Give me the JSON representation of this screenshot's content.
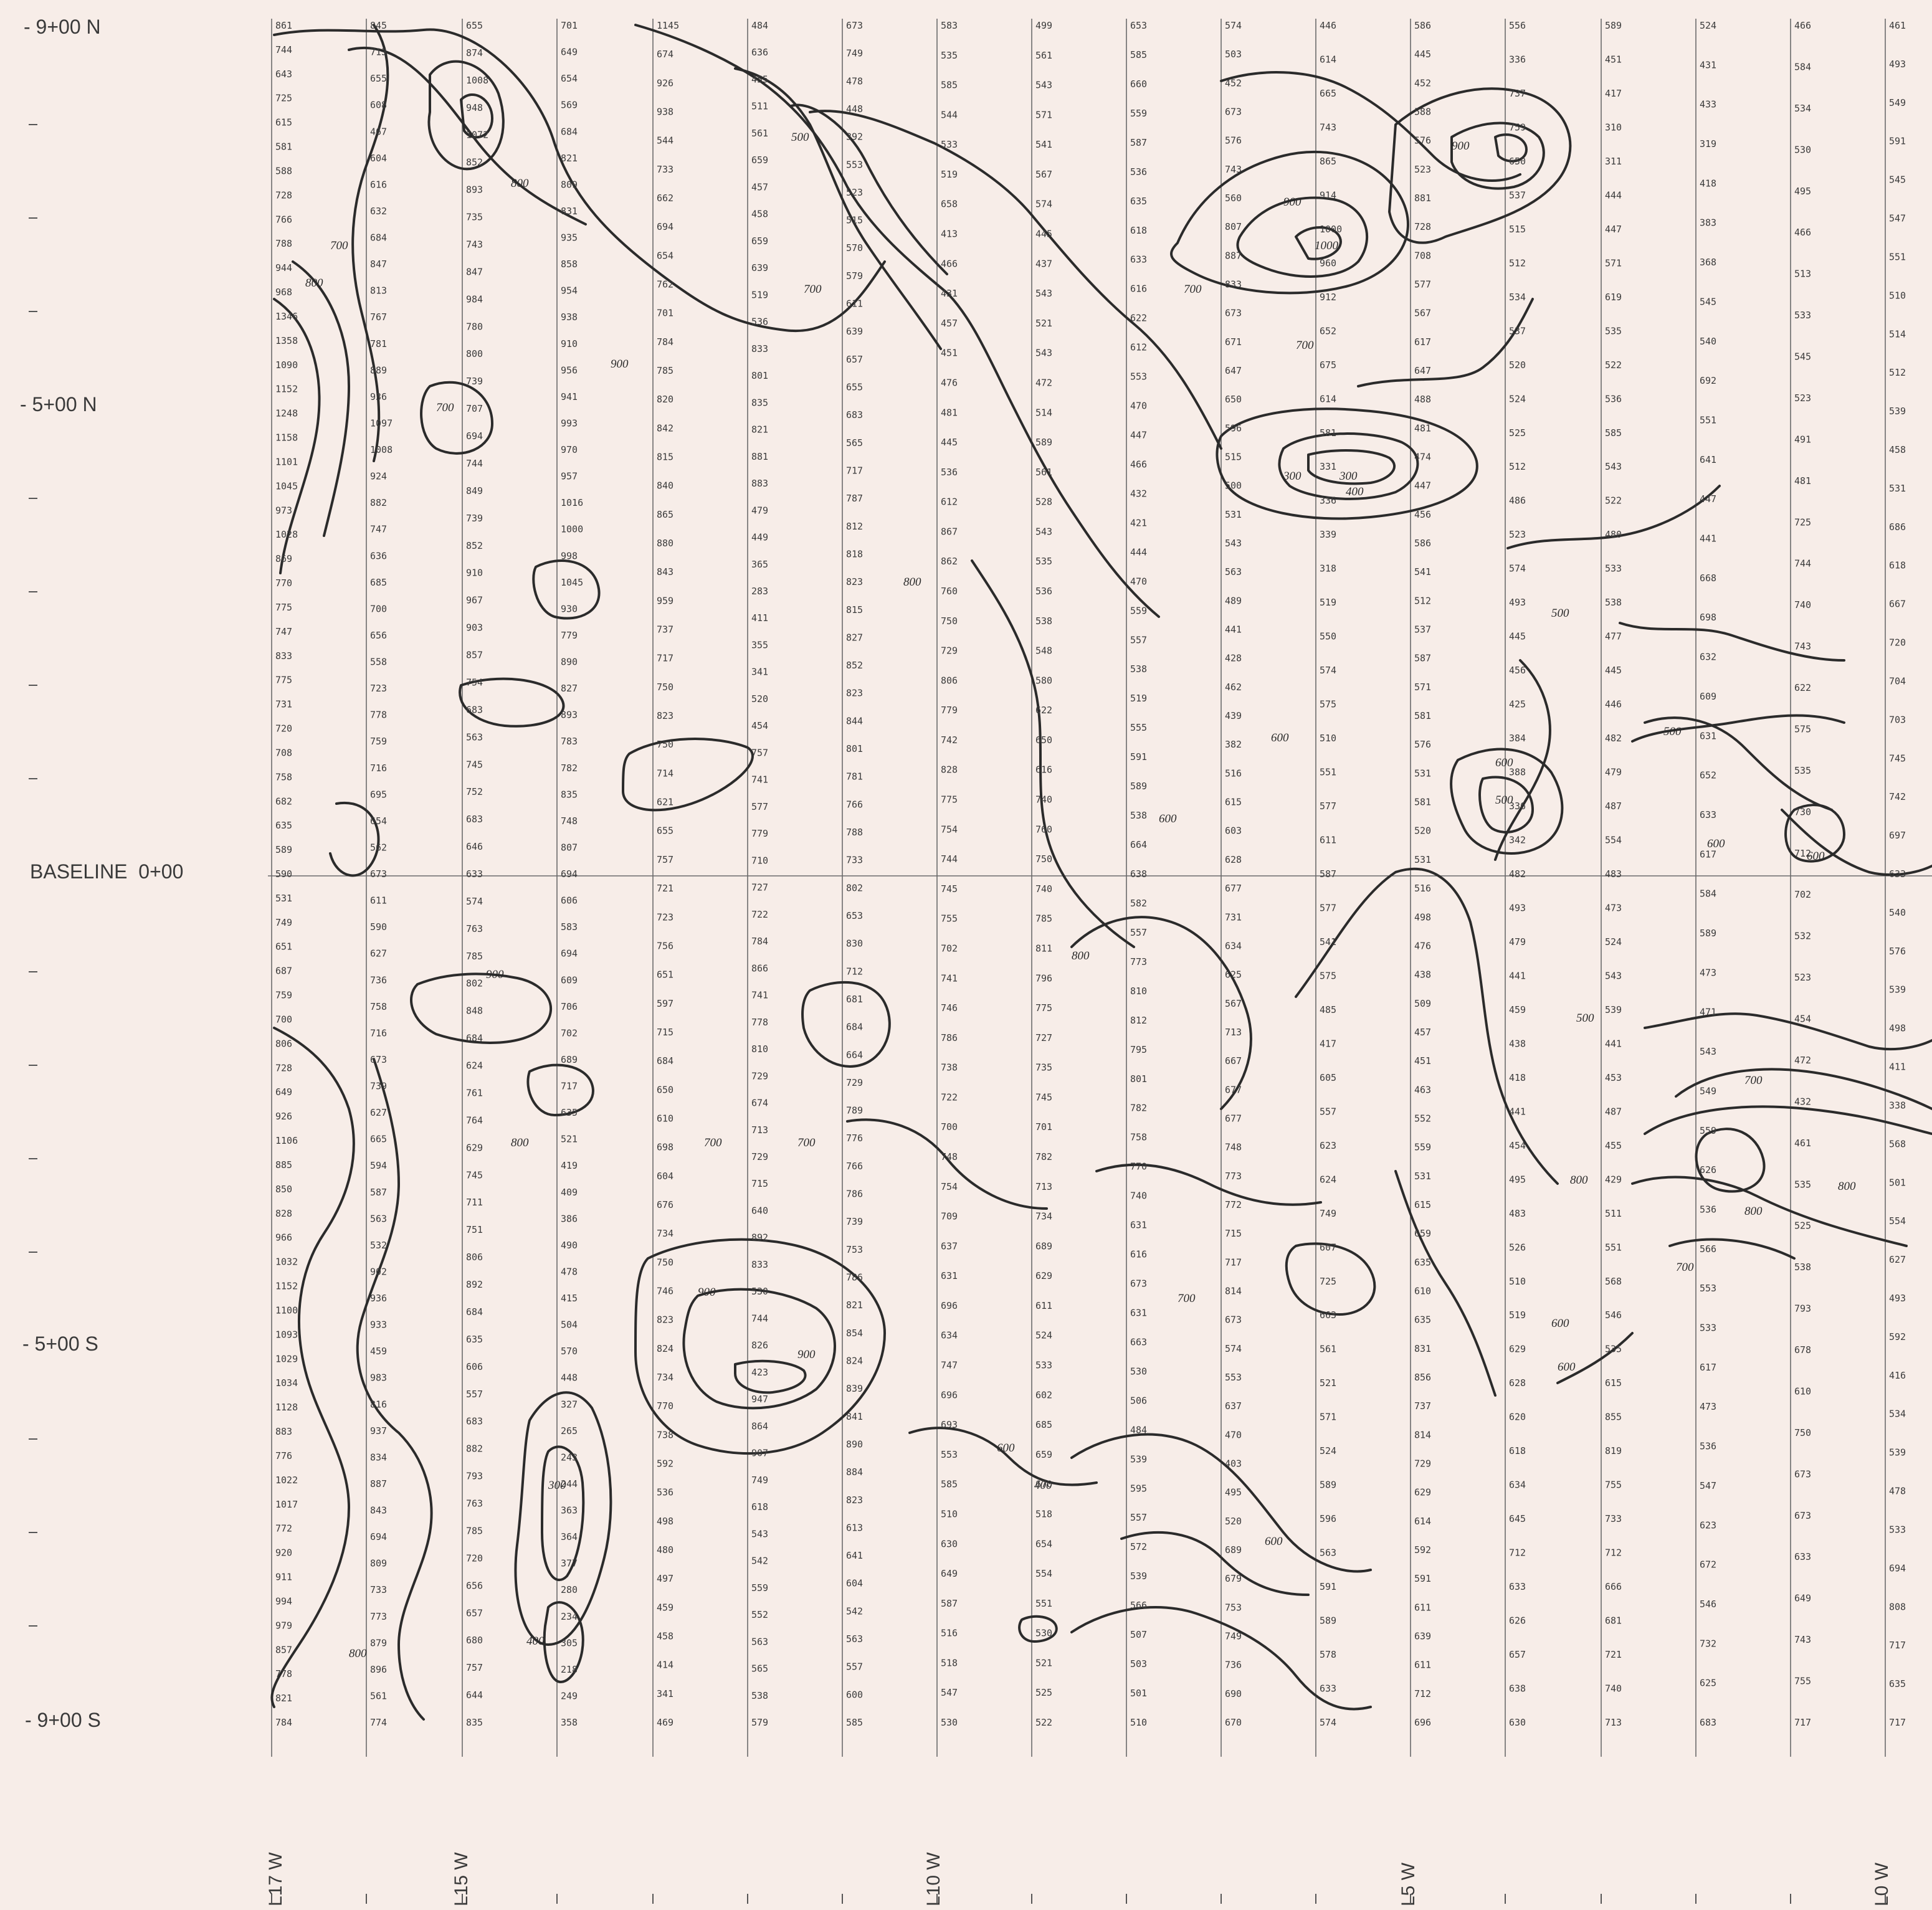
{
  "map": {
    "row_labels": [
      "- 9+00 N",
      "- 5+00 N",
      "BASELINE  0+00",
      "- 5+00 S",
      "- 9+00 S"
    ],
    "line_labels": [
      "L17 W",
      "L15 W",
      "L10 W",
      "L5 W",
      "L0 W"
    ],
    "contour_labels": [
      "300",
      "300",
      "300",
      "400",
      "400",
      "400",
      "500",
      "500",
      "500",
      "500",
      "500",
      "600",
      "600",
      "600",
      "600",
      "600",
      "600",
      "600",
      "600",
      "600",
      "700",
      "700",
      "700",
      "700",
      "700",
      "700",
      "700",
      "700",
      "700",
      "700",
      "800",
      "800",
      "800",
      "800",
      "800",
      "800",
      "800",
      "800",
      "800",
      "900",
      "900",
      "900",
      "900",
      "900",
      "900",
      "1000"
    ],
    "readings": [
      {
        "line": 0,
        "values": [
          "861",
          "744",
          "643",
          "725",
          "615",
          "581",
          "588",
          "728",
          "766",
          "788",
          "944",
          "968",
          "1346",
          "1358",
          "1090",
          "1152",
          "1248",
          "1158",
          "1101",
          "1045",
          "973",
          "1028",
          "869",
          "770",
          "775",
          "747",
          "833",
          "775",
          "731",
          "720",
          "708",
          "758",
          "682",
          "635",
          "589",
          "590",
          "531",
          "749",
          "651",
          "687",
          "759",
          "700",
          "806",
          "728",
          "649",
          "926",
          "1106",
          "885",
          "850",
          "828",
          "966",
          "1032",
          "1152",
          "1100",
          "1093",
          "1029",
          "1034",
          "1128",
          "883",
          "776",
          "1022",
          "1017",
          "772",
          "920",
          "911",
          "994",
          "979",
          "857",
          "778",
          "821",
          "784"
        ]
      },
      {
        "line": 1,
        "values": [
          "845",
          "713",
          "655",
          "608",
          "467",
          "604",
          "616",
          "632",
          "684",
          "847",
          "813",
          "767",
          "781",
          "889",
          "936",
          "1097",
          "1008",
          "924",
          "882",
          "747",
          "636",
          "685",
          "700",
          "656",
          "558",
          "723",
          "778",
          "759",
          "716",
          "695",
          "654",
          "562",
          "673",
          "611",
          "590",
          "627",
          "736",
          "758",
          "716",
          "673",
          "739",
          "627",
          "665",
          "594",
          "587",
          "563",
          "532",
          "902",
          "936",
          "933",
          "459",
          "983",
          "816",
          "937",
          "834",
          "887",
          "843",
          "694",
          "809",
          "733",
          "773",
          "879",
          "896",
          "561",
          "774"
        ]
      },
      {
        "line": 2,
        "values": [
          "655",
          "874",
          "1008",
          "948",
          "1072",
          "852",
          "893",
          "735",
          "743",
          "847",
          "984",
          "780",
          "800",
          "739",
          "707",
          "694",
          "744",
          "849",
          "739",
          "852",
          "910",
          "967",
          "903",
          "857",
          "754",
          "683",
          "563",
          "745",
          "752",
          "683",
          "646",
          "633",
          "574",
          "763",
          "785",
          "802",
          "848",
          "684",
          "624",
          "761",
          "764",
          "629",
          "745",
          "711",
          "751",
          "806",
          "892",
          "684",
          "635",
          "606",
          "557",
          "683",
          "882",
          "793",
          "763",
          "785",
          "720",
          "656",
          "657",
          "680",
          "757",
          "644",
          "835"
        ]
      },
      {
        "line": 3,
        "values": [
          "701",
          "649",
          "654",
          "569",
          "684",
          "821",
          "809",
          "831",
          "935",
          "858",
          "954",
          "938",
          "910",
          "956",
          "941",
          "993",
          "970",
          "957",
          "1016",
          "1000",
          "998",
          "1045",
          "930",
          "779",
          "890",
          "827",
          "893",
          "783",
          "782",
          "835",
          "748",
          "807",
          "694",
          "606",
          "583",
          "694",
          "609",
          "706",
          "702",
          "689",
          "717",
          "635",
          "521",
          "419",
          "409",
          "386",
          "490",
          "478",
          "415",
          "504",
          "570",
          "448",
          "327",
          "265",
          "243",
          "244",
          "363",
          "364",
          "377",
          "280",
          "234",
          "305",
          "218",
          "249",
          "358"
        ]
      },
      {
        "line": 4,
        "values": [
          "1145",
          "674",
          "926",
          "938",
          "544",
          "733",
          "662",
          "694",
          "654",
          "762",
          "701",
          "784",
          "785",
          "820",
          "842",
          "815",
          "840",
          "865",
          "880",
          "843",
          "959",
          "737",
          "717",
          "750",
          "823",
          "750",
          "714",
          "621",
          "655",
          "757",
          "721",
          "723",
          "756",
          "651",
          "597",
          "715",
          "684",
          "650",
          "610",
          "698",
          "604",
          "676",
          "734",
          "750",
          "746",
          "823",
          "824",
          "734",
          "770",
          "738",
          "592",
          "536",
          "498",
          "480",
          "497",
          "459",
          "458",
          "414",
          "341",
          "469"
        ]
      },
      {
        "line": 5,
        "values": [
          "484",
          "636",
          "455",
          "511",
          "561",
          "659",
          "457",
          "458",
          "659",
          "639",
          "519",
          "536",
          "833",
          "801",
          "835",
          "821",
          "881",
          "883",
          "479",
          "449",
          "365",
          "283",
          "411",
          "355",
          "341",
          "520",
          "454",
          "757",
          "741",
          "577",
          "779",
          "710",
          "727",
          "722",
          "784",
          "866",
          "741",
          "778",
          "810",
          "729",
          "674",
          "713",
          "729",
          "715",
          "640",
          "892",
          "833",
          "530",
          "744",
          "826",
          "423",
          "947",
          "864",
          "907",
          "749",
          "618",
          "543",
          "542",
          "559",
          "552",
          "563",
          "565",
          "538",
          "579"
        ]
      },
      {
        "line": 6,
        "values": [
          "673",
          "749",
          "478",
          "448",
          "392",
          "553",
          "523",
          "515",
          "570",
          "579",
          "611",
          "639",
          "657",
          "655",
          "683",
          "565",
          "717",
          "787",
          "812",
          "818",
          "823",
          "815",
          "827",
          "852",
          "823",
          "844",
          "801",
          "781",
          "766",
          "788",
          "733",
          "802",
          "653",
          "830",
          "712",
          "681",
          "684",
          "664",
          "729",
          "789",
          "776",
          "766",
          "786",
          "739",
          "753",
          "786",
          "821",
          "854",
          "824",
          "839",
          "841",
          "890",
          "884",
          "823",
          "613",
          "641",
          "604",
          "542",
          "563",
          "557",
          "600",
          "585"
        ]
      },
      {
        "line": 7,
        "values": [
          "583",
          "535",
          "585",
          "544",
          "533",
          "519",
          "658",
          "413",
          "466",
          "431",
          "457",
          "451",
          "476",
          "481",
          "445",
          "536",
          "612",
          "867",
          "862",
          "760",
          "750",
          "729",
          "806",
          "779",
          "742",
          "828",
          "775",
          "754",
          "744",
          "745",
          "755",
          "702",
          "741",
          "746",
          "786",
          "738",
          "722",
          "700",
          "748",
          "754",
          "709",
          "637",
          "631",
          "696",
          "634",
          "747",
          "696",
          "693",
          "553",
          "585",
          "510",
          "630",
          "649",
          "587",
          "516",
          "518",
          "547",
          "530"
        ]
      },
      {
        "line": 8,
        "values": [
          "499",
          "561",
          "543",
          "571",
          "541",
          "567",
          "574",
          "445",
          "437",
          "543",
          "521",
          "543",
          "472",
          "514",
          "589",
          "561",
          "528",
          "543",
          "535",
          "536",
          "538",
          "548",
          "580",
          "622",
          "650",
          "616",
          "740",
          "760",
          "750",
          "740",
          "785",
          "811",
          "796",
          "775",
          "727",
          "735",
          "745",
          "701",
          "782",
          "713",
          "734",
          "689",
          "629",
          "611",
          "524",
          "533",
          "602",
          "685",
          "659",
          "670",
          "518",
          "654",
          "554",
          "551",
          "530",
          "521",
          "525",
          "522"
        ]
      },
      {
        "line": 9,
        "values": [
          "653",
          "585",
          "660",
          "559",
          "587",
          "536",
          "635",
          "618",
          "633",
          "616",
          "622",
          "612",
          "553",
          "470",
          "447",
          "466",
          "432",
          "421",
          "444",
          "470",
          "559",
          "557",
          "538",
          "519",
          "555",
          "591",
          "589",
          "538",
          "664",
          "638",
          "582",
          "557",
          "773",
          "810",
          "812",
          "795",
          "801",
          "782",
          "758",
          "770",
          "740",
          "631",
          "616",
          "673",
          "631",
          "663",
          "530",
          "506",
          "484",
          "539",
          "595",
          "557",
          "572",
          "539",
          "566",
          "507",
          "503",
          "501",
          "510"
        ]
      },
      {
        "line": 10,
        "values": [
          "574",
          "503",
          "452",
          "673",
          "576",
          "743",
          "560",
          "807",
          "887",
          "833",
          "673",
          "671",
          "647",
          "650",
          "596",
          "515",
          "500",
          "531",
          "543",
          "563",
          "489",
          "441",
          "428",
          "462",
          "439",
          "382",
          "516",
          "615",
          "603",
          "628",
          "677",
          "731",
          "634",
          "625",
          "567",
          "713",
          "667",
          "677",
          "677",
          "748",
          "773",
          "772",
          "715",
          "717",
          "814",
          "673",
          "574",
          "553",
          "637",
          "470",
          "403",
          "495",
          "520",
          "689",
          "679",
          "753",
          "749",
          "736",
          "690",
          "670"
        ]
      },
      {
        "line": 11,
        "values": [
          "446",
          "614",
          "665",
          "743",
          "865",
          "914",
          "1000",
          "960",
          "912",
          "652",
          "675",
          "614",
          "581",
          "331",
          "336",
          "339",
          "318",
          "519",
          "550",
          "574",
          "575",
          "510",
          "551",
          "577",
          "611",
          "587",
          "577",
          "541",
          "575",
          "485",
          "417",
          "605",
          "557",
          "623",
          "624",
          "749",
          "607",
          "725",
          "663",
          "561",
          "521",
          "571",
          "524",
          "589",
          "596",
          "563",
          "591",
          "589",
          "578",
          "633",
          "574"
        ]
      },
      {
        "line": 12,
        "values": [
          "586",
          "445",
          "452",
          "588",
          "576",
          "523",
          "881",
          "728",
          "708",
          "577",
          "567",
          "617",
          "647",
          "488",
          "481",
          "474",
          "447",
          "456",
          "586",
          "541",
          "512",
          "537",
          "587",
          "571",
          "581",
          "576",
          "531",
          "581",
          "520",
          "531",
          "516",
          "498",
          "476",
          "438",
          "509",
          "457",
          "451",
          "463",
          "552",
          "559",
          "531",
          "615",
          "659",
          "635",
          "610",
          "635",
          "831",
          "856",
          "737",
          "814",
          "729",
          "629",
          "614",
          "592",
          "591",
          "611",
          "639",
          "611",
          "712",
          "696"
        ]
      },
      {
        "line": 13,
        "values": [
          "556",
          "336",
          "737",
          "759",
          "650",
          "537",
          "515",
          "512",
          "534",
          "537",
          "520",
          "524",
          "525",
          "512",
          "486",
          "523",
          "574",
          "493",
          "445",
          "456",
          "425",
          "384",
          "388",
          "336",
          "342",
          "482",
          "493",
          "479",
          "441",
          "459",
          "438",
          "418",
          "441",
          "454",
          "495",
          "483",
          "526",
          "510",
          "519",
          "629",
          "628",
          "620",
          "618",
          "634",
          "645",
          "712",
          "633",
          "626",
          "657",
          "638",
          "630"
        ]
      },
      {
        "line": 14,
        "values": [
          "589",
          "451",
          "417",
          "310",
          "311",
          "444",
          "447",
          "571",
          "619",
          "535",
          "522",
          "536",
          "585",
          "543",
          "522",
          "480",
          "533",
          "538",
          "477",
          "445",
          "446",
          "482",
          "479",
          "487",
          "554",
          "483",
          "473",
          "524",
          "543",
          "539",
          "441",
          "453",
          "487",
          "455",
          "429",
          "511",
          "551",
          "568",
          "546",
          "535",
          "615",
          "855",
          "819",
          "755",
          "733",
          "712",
          "666",
          "681",
          "721",
          "740",
          "713"
        ]
      },
      {
        "line": 15,
        "values": [
          "524",
          "431",
          "433",
          "319",
          "418",
          "383",
          "368",
          "545",
          "540",
          "692",
          "551",
          "641",
          "447",
          "441",
          "668",
          "698",
          "632",
          "609",
          "631",
          "652",
          "633",
          "617",
          "584",
          "589",
          "473",
          "471",
          "543",
          "549",
          "559",
          "626",
          "536",
          "566",
          "553",
          "533",
          "617",
          "473",
          "536",
          "547",
          "623",
          "672",
          "546",
          "732",
          "625",
          "683"
        ]
      },
      {
        "line": 16,
        "values": [
          "466",
          "584",
          "534",
          "530",
          "495",
          "466",
          "513",
          "533",
          "545",
          "523",
          "491",
          "481",
          "725",
          "744",
          "740",
          "743",
          "622",
          "575",
          "535",
          "730",
          "712",
          "702",
          "532",
          "523",
          "454",
          "472",
          "432",
          "461",
          "535",
          "525",
          "538",
          "793",
          "678",
          "610",
          "750",
          "673",
          "673",
          "633",
          "649",
          "743",
          "755",
          "717"
        ]
      },
      {
        "line": 17,
        "values": [
          "461",
          "493",
          "549",
          "591",
          "545",
          "547",
          "551",
          "510",
          "514",
          "512",
          "539",
          "458",
          "531",
          "686",
          "618",
          "667",
          "720",
          "704",
          "703",
          "745",
          "742",
          "697",
          "633",
          "540",
          "576",
          "539",
          "498",
          "411",
          "338",
          "568",
          "501",
          "554",
          "627",
          "493",
          "592",
          "416",
          "534",
          "539",
          "478",
          "533",
          "694",
          "808",
          "717",
          "635",
          "717"
        ]
      }
    ]
  }
}
